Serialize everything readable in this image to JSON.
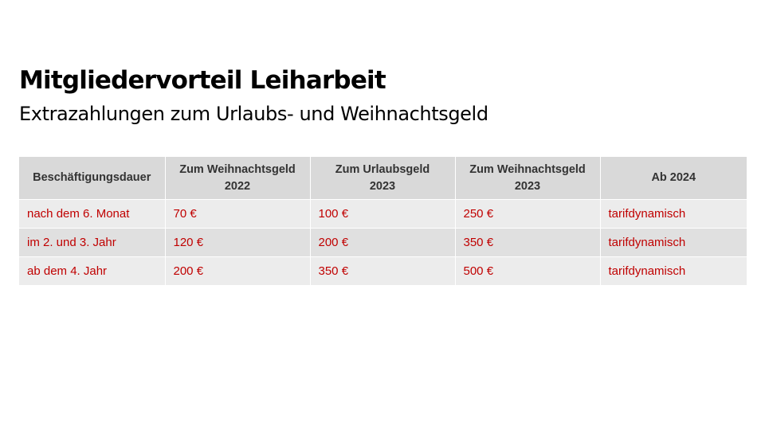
{
  "slide": {
    "title": "Mitgliedervorteil Leiharbeit",
    "subtitle": "Extrazahlungen zum Urlaubs- und Weihnachtsgeld"
  },
  "colors": {
    "header_bg": "#d9d9d9",
    "row_bg_a": "#ececec",
    "row_bg_b": "#e0e0e0",
    "value_text": "#c00000",
    "header_text": "#333333"
  },
  "table": {
    "headers": [
      {
        "line1": "Beschäftigungsdauer",
        "line2": ""
      },
      {
        "line1": "Zum Weihnachtsgeld",
        "line2": "2022"
      },
      {
        "line1": "Zum Urlaubsgeld",
        "line2": "2023"
      },
      {
        "line1": "Zum Weihnachtsgeld",
        "line2": "2023"
      },
      {
        "line1": "Ab 2024",
        "line2": ""
      }
    ],
    "rows": [
      [
        "nach dem 6. Monat",
        "70 €",
        "100 €",
        "250 €",
        "tarifdynamisch"
      ],
      [
        "im 2. und 3. Jahr",
        "120 €",
        "200 €",
        "350 €",
        "tarifdynamisch"
      ],
      [
        "ab dem 4. Jahr",
        "200 €",
        "350 €",
        "500 €",
        "tarifdynamisch"
      ]
    ]
  }
}
